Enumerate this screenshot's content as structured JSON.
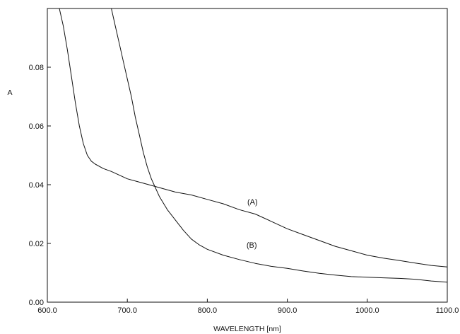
{
  "chart_data": {
    "type": "line",
    "xlabel": "WAVELENGTH [nm]",
    "ylabel": "A",
    "xlim": [
      600,
      1100
    ],
    "ylim": [
      0,
      0.1
    ],
    "grid": false,
    "xticks": [
      600,
      700,
      800,
      900,
      1000,
      1100
    ],
    "xtick_labels": [
      "600.0",
      "700.0",
      "800.0",
      "900.0",
      "1000.0",
      "1100.0"
    ],
    "yticks": [
      0,
      0.02,
      0.04,
      0.06,
      0.08
    ],
    "ytick_labels": [
      "0.00",
      "0.02",
      "0.04",
      "0.06",
      "0.08"
    ],
    "series": [
      {
        "name": "(A)",
        "label_at": [
          850,
          0.0333
        ],
        "x": [
          615,
          620,
          625,
          630,
          635,
          640,
          645,
          650,
          655,
          660,
          670,
          680,
          700,
          720,
          740,
          760,
          780,
          800,
          820,
          840,
          860,
          880,
          900,
          920,
          940,
          960,
          980,
          1000,
          1020,
          1040,
          1060,
          1080,
          1100
        ],
        "y": [
          0.1,
          0.094,
          0.086,
          0.077,
          0.068,
          0.06,
          0.054,
          0.05,
          0.048,
          0.047,
          0.0455,
          0.0445,
          0.042,
          0.0405,
          0.039,
          0.0375,
          0.0365,
          0.035,
          0.0335,
          0.0315,
          0.03,
          0.0275,
          0.025,
          0.023,
          0.021,
          0.019,
          0.0175,
          0.016,
          0.015,
          0.0142,
          0.0133,
          0.0125,
          0.012
        ]
      },
      {
        "name": "(B)",
        "label_at": [
          849,
          0.0185
        ],
        "x": [
          680,
          685,
          690,
          695,
          700,
          705,
          710,
          715,
          720,
          725,
          730,
          740,
          750,
          760,
          770,
          780,
          790,
          800,
          820,
          840,
          860,
          880,
          900,
          920,
          940,
          960,
          980,
          1000,
          1020,
          1040,
          1060,
          1080,
          1100
        ],
        "y": [
          0.1,
          0.094,
          0.088,
          0.082,
          0.076,
          0.07,
          0.063,
          0.057,
          0.051,
          0.046,
          0.042,
          0.036,
          0.0315,
          0.028,
          0.0245,
          0.0215,
          0.0195,
          0.018,
          0.016,
          0.0145,
          0.0132,
          0.0122,
          0.0115,
          0.0106,
          0.0098,
          0.0092,
          0.0087,
          0.0085,
          0.0083,
          0.0081,
          0.0078,
          0.0072,
          0.0068
        ]
      }
    ]
  }
}
